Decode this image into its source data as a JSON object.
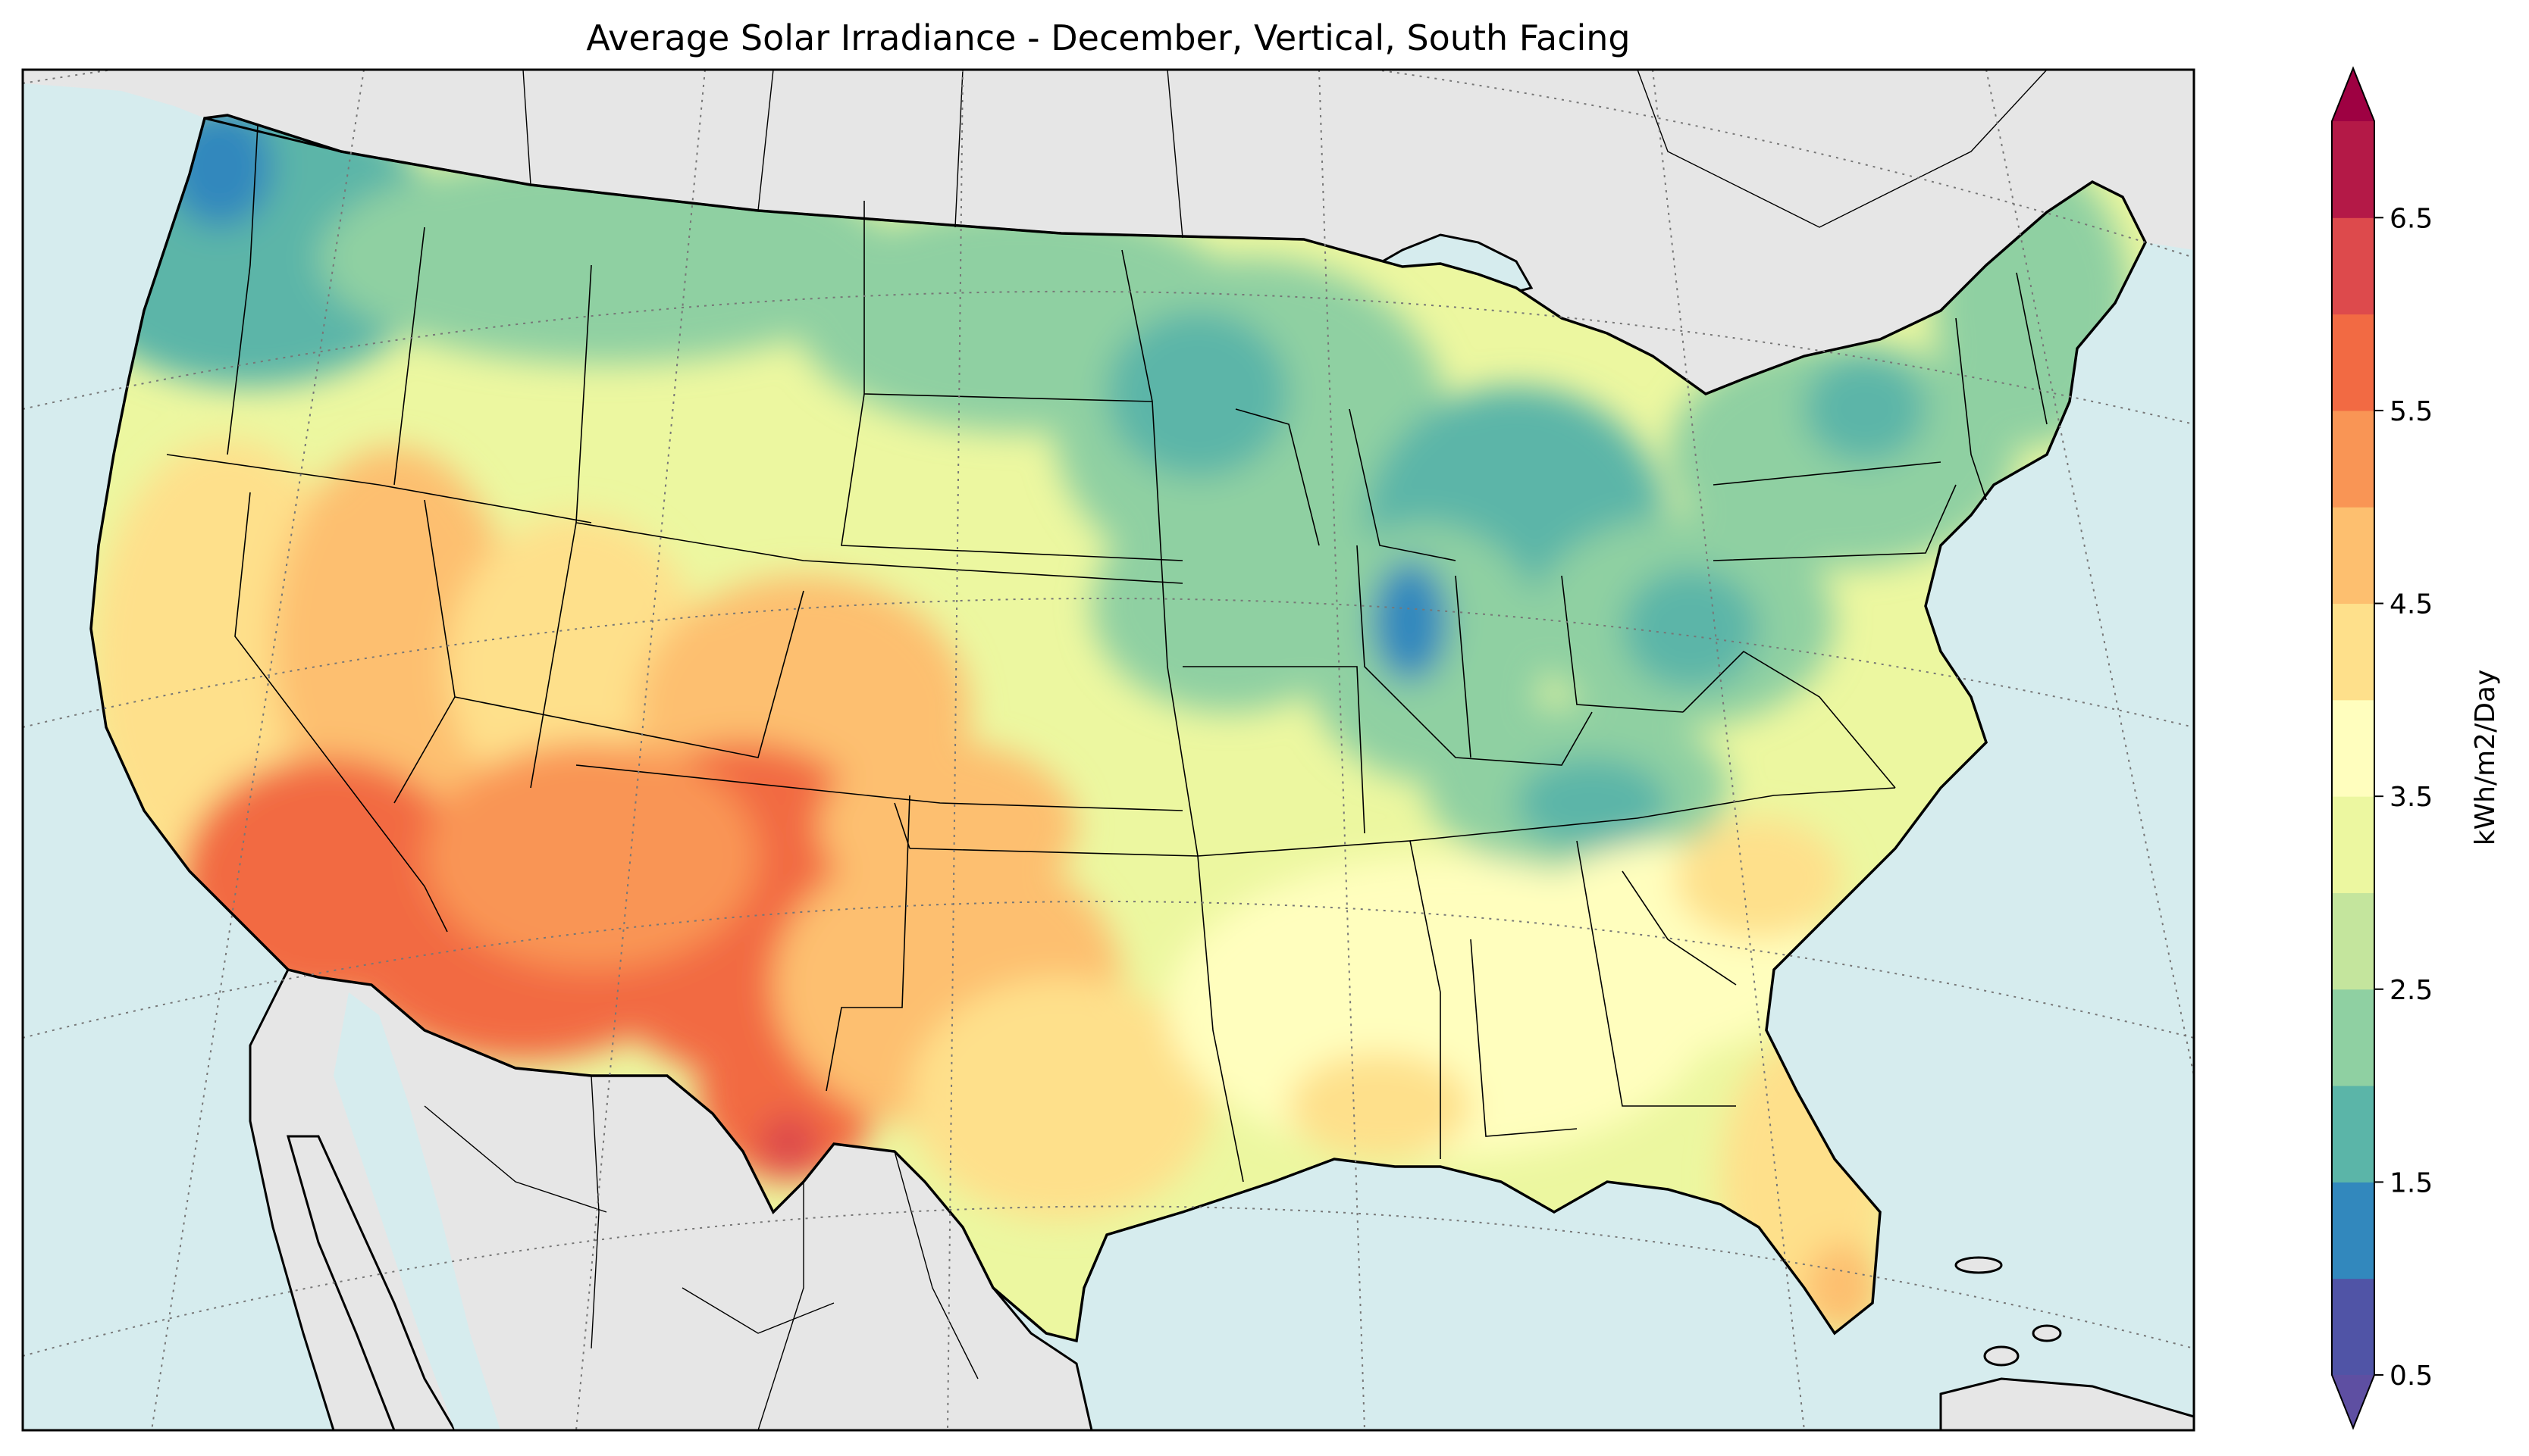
{
  "title": "Average Solar Irradiance - December, Vertical, South Facing",
  "colorbar": {
    "label": "kWh/m2/Day",
    "ticks": [
      "0.5",
      "1.5",
      "2.5",
      "3.5",
      "4.5",
      "5.5",
      "6.5"
    ],
    "levels": [
      0.5,
      1.0,
      1.5,
      2.0,
      2.5,
      3.0,
      3.5,
      4.0,
      4.5,
      5.0,
      5.5,
      6.0,
      6.5,
      7.0
    ],
    "under_color": "#5e4fa2",
    "over_color": "#9e0142",
    "colors": [
      "#5054a6",
      "#3288bd",
      "#5bb5a8",
      "#8fd0a2",
      "#c4e59d",
      "#ecf7a0",
      "#fffebe",
      "#fee08b",
      "#fdbf6f",
      "#f99555",
      "#f26a43",
      "#dd4a4c",
      "#b41947"
    ],
    "extend": "both"
  },
  "map": {
    "region": "Contiguous United States",
    "projection": "Lambert Conformal",
    "ocean_color": "#d6ecee",
    "land_color": "#e6e6e6",
    "graticule": "dotted gray"
  }
}
